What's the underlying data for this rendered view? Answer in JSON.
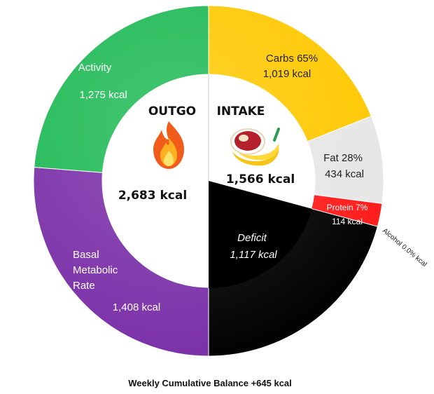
{
  "chart_data": {
    "type": "pie",
    "title": "",
    "caption": "Weekly Cumulative Balance +645 kcal",
    "outgo": {
      "heading": "OUTGO",
      "total": "2,683 kcal",
      "icon": "fire-icon",
      "slices": [
        {
          "name": "Activity",
          "value": 1275,
          "value_label": "1,275 kcal",
          "color": "#1db954"
        },
        {
          "name": "Basal Metabolic Rate",
          "name_lines": [
            "Basal",
            "Metabolic",
            "Rate"
          ],
          "value": 1408,
          "value_label": "1,408 kcal",
          "color": "#7a2fa8"
        }
      ]
    },
    "intake": {
      "heading": "INTAKE",
      "total": "1,566 kcal",
      "icon": "food-icon",
      "slices": [
        {
          "name": "Carbs 65%",
          "value": 1019,
          "value_label": "1,019 kcal",
          "color": "#ffc800"
        },
        {
          "name": "Fat 28%",
          "value": 434,
          "value_label": "434 kcal",
          "color": "#e6e6e6"
        },
        {
          "name": "Protein 7%",
          "value": 114,
          "value_label": "114 kcal",
          "color": "#ff1a1a"
        },
        {
          "name": "Alcohol 0.0%",
          "value": 0,
          "value_label": "kcal",
          "color": "#444444"
        },
        {
          "name": "Deficit",
          "value": 1117,
          "value_label": "1,117 kcal",
          "color": "#000000"
        }
      ]
    }
  }
}
